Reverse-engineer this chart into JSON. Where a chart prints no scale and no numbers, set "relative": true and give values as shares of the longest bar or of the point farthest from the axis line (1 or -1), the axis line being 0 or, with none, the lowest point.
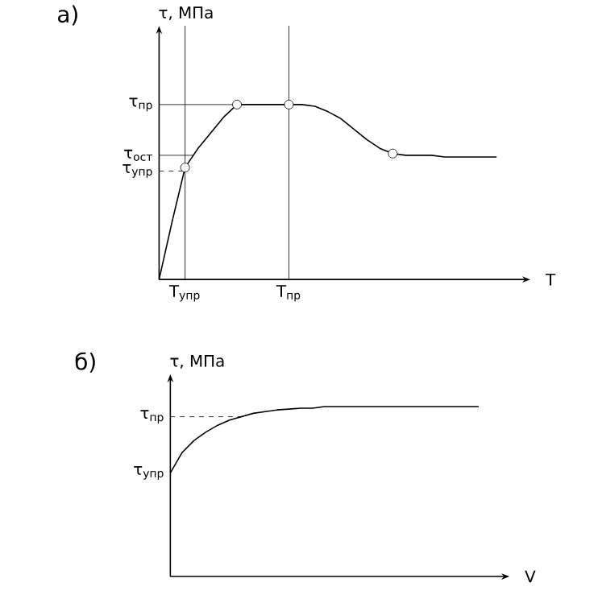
{
  "chart_data": [
    {
      "type": "line",
      "title": "а)",
      "xlabel": "T",
      "ylabel": "τ, МПа",
      "relative": true,
      "categories": [
        null,
        null,
        "T$_{упр}$",
        null,
        null,
        null,
        null,
        null,
        null,
        null,
        "T$_{пр}$",
        null,
        null,
        null,
        null,
        null,
        null,
        null,
        null,
        null,
        null,
        null,
        null,
        null,
        null,
        null,
        null
      ],
      "series": [
        {
          "color": "#000000",
          "marker": "none",
          "values": [
            0,
            0.33,
            0.64,
            0.75,
            0.84,
            0.93,
            1.0,
            1.0,
            1.0,
            1.0,
            1.0,
            1.0,
            0.99,
            0.96,
            0.92,
            0.86,
            0.8,
            0.75,
            0.72,
            0.71,
            0.71,
            0.71,
            0.7,
            0.7,
            0.7,
            0.7,
            0.7
          ]
        },
        {
          "type": "scatter",
          "color": "#000000",
          "marker": "circle",
          "values": [
            null,
            null,
            0.64,
            null,
            null,
            null,
            1.0,
            null,
            null,
            null,
            1.0,
            null,
            null,
            null,
            null,
            null,
            null,
            null,
            0.72,
            null,
            null,
            null,
            null,
            null,
            null,
            null,
            null
          ]
        }
      ],
      "ref_lines": [
        {
          "axis": "y",
          "value": 1.0,
          "label": "τ$_{пр}$",
          "line_style": "solid"
        },
        {
          "axis": "y",
          "value": 0.71,
          "label": "τ$_{ост}$",
          "line_style": "solid"
        },
        {
          "axis": "y",
          "value": 0.62,
          "label": "τ$_{упр}$",
          "line_style": "dashed"
        },
        {
          "axis": "x",
          "value": "T$_{упр}$",
          "line_style": "solid"
        },
        {
          "axis": "x",
          "value": "T$_{пр}$",
          "line_style": "solid"
        }
      ]
    },
    {
      "type": "line",
      "title": "б)",
      "xlabel": "V",
      "ylabel": "τ, МПа",
      "relative": true,
      "categories": [
        null,
        null,
        null,
        null,
        null,
        null,
        null,
        null,
        null,
        null,
        null,
        null,
        null,
        null,
        null,
        null,
        null,
        null,
        null,
        null,
        null,
        null,
        null,
        null,
        null,
        null,
        null
      ],
      "series": [
        {
          "color": "#000000",
          "marker": "none",
          "values": [
            0.61,
            0.73,
            0.8,
            0.85,
            0.89,
            0.92,
            0.94,
            0.96,
            0.97,
            0.98,
            0.985,
            0.99,
            0.99,
            1.0,
            1.0,
            1.0,
            1.0,
            1.0,
            1.0,
            1.0,
            1.0,
            1.0,
            1.0,
            1.0,
            1.0,
            1.0,
            1.0
          ]
        }
      ],
      "ref_lines": [
        {
          "axis": "y",
          "value": 0.94,
          "label": "τ$_{пр}$",
          "line_style": "dashed"
        }
      ],
      "annotations": [
        "τ$_{упр}$"
      ]
    }
  ]
}
